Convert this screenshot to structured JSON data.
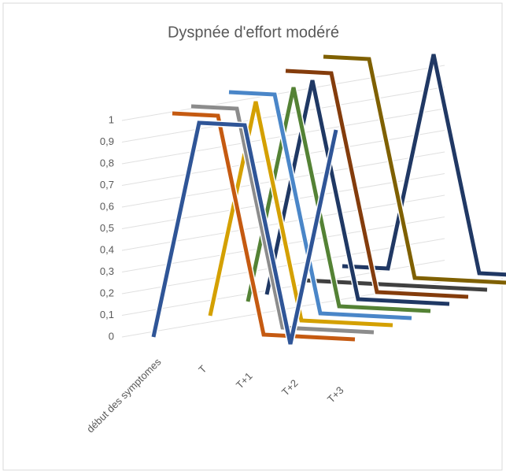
{
  "chart_data": {
    "type": "line3d",
    "title": "Dyspnée d'effort modéré",
    "categories": [
      "début des symptomes",
      "T",
      "T+1",
      "T+2",
      "T+3"
    ],
    "ylim": [
      0,
      1
    ],
    "yticks": [
      0,
      {
        "value": 0.1,
        "label": "0,1"
      },
      {
        "value": 0.2,
        "label": "0,2"
      },
      {
        "value": 0.3,
        "label": "0,3"
      },
      {
        "value": 0.4,
        "label": "0,4"
      },
      {
        "value": 0.5,
        "label": "0,5"
      },
      {
        "value": 0.6,
        "label": "0,6"
      },
      {
        "value": 0.7,
        "label": "0,7"
      },
      {
        "value": 0.8,
        "label": "0,8"
      },
      {
        "value": 0.9,
        "label": "0,9"
      },
      1
    ],
    "grid": true,
    "series": [
      {
        "color": "#2f5597",
        "values": [
          0,
          1,
          1,
          0,
          1
        ]
      },
      {
        "color": "#c55a11",
        "values": [
          1,
          1,
          0,
          0,
          0
        ]
      },
      {
        "color": "#8c8c8c",
        "values": [
          1,
          1,
          0,
          0,
          0
        ]
      },
      {
        "color": "#d4a000",
        "values": [
          0,
          1,
          0,
          0,
          0
        ]
      },
      {
        "color": "#4a86c8",
        "values": [
          1,
          1,
          0,
          0,
          0
        ]
      },
      {
        "color": "#548235",
        "values": [
          0,
          1,
          0,
          0,
          0
        ]
      },
      {
        "color": "#1f3864",
        "values": [
          0,
          1,
          0,
          0,
          0
        ]
      },
      {
        "color": "#843c0c",
        "values": [
          1,
          1,
          0,
          0,
          0
        ]
      },
      {
        "color": "#404040",
        "values": [
          0,
          0,
          0,
          0,
          0
        ]
      },
      {
        "color": "#7f6000",
        "values": [
          1,
          1,
          0,
          0,
          0
        ]
      },
      {
        "color": "#203864",
        "values": [
          0,
          0,
          1,
          0,
          0
        ]
      }
    ]
  }
}
